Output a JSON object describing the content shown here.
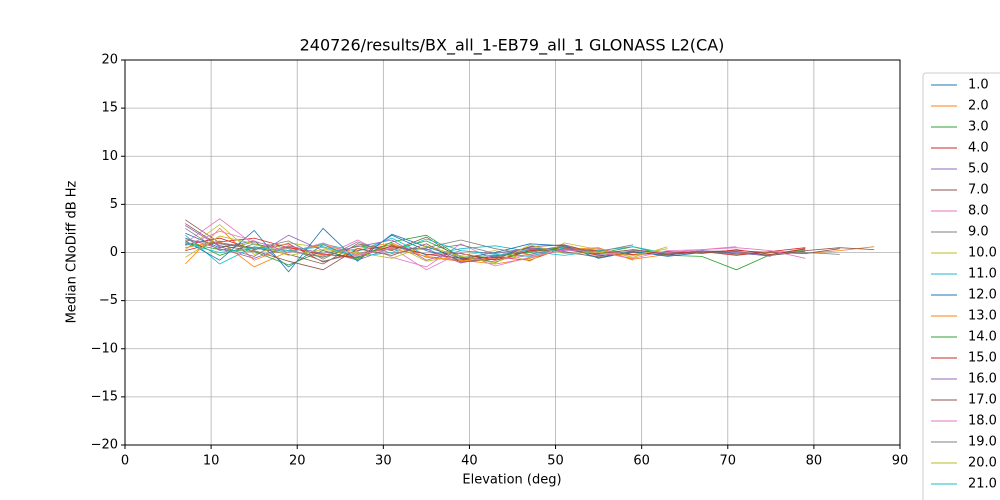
{
  "chart_data": {
    "type": "line",
    "title": "240726/results/BX_all_1-EB79_all_1 GLONASS L2(CA)",
    "xlabel": "Elevation (deg)",
    "ylabel": "Median CNoDiff dB Hz",
    "xlim": [
      0,
      90
    ],
    "ylim": [
      -20,
      20
    ],
    "xticks": [
      0,
      10,
      20,
      30,
      40,
      50,
      60,
      70,
      80,
      90
    ],
    "yticks": [
      {
        "value": -20,
        "label": "−20"
      },
      {
        "value": -15,
        "label": "−15"
      },
      {
        "value": -10,
        "label": "−10"
      },
      {
        "value": -5,
        "label": "−5"
      },
      0,
      5,
      10,
      15,
      20
    ],
    "grid": true,
    "legend": "right",
    "x": [
      7,
      11,
      15,
      19,
      23,
      27,
      31,
      35,
      39,
      43,
      47,
      51,
      55,
      59,
      63,
      67,
      71,
      75,
      79,
      83,
      87
    ],
    "series": [
      {
        "name": "1.0",
        "color": "#1f77b4",
        "values": [
          2.0,
          0.5,
          1.2,
          -1.5,
          0.8,
          -0.6,
          1.8,
          0.2,
          -0.8,
          -0.4,
          0.5,
          0.3,
          -0.2,
          0.1,
          -0.3,
          0.2,
          -0.1,
          -0.3,
          0.1,
          null,
          null
        ]
      },
      {
        "name": "2.0",
        "color": "#ff7f0e",
        "values": [
          -1.2,
          2.5,
          -0.8,
          0.6,
          -0.3,
          0.4,
          1.0,
          -0.5,
          -0.9,
          -0.6,
          -0.2,
          0.6,
          0.1,
          -0.7,
          -0.2,
          0.1,
          -0.2,
          0.0,
          -0.1,
          0.2,
          0.6
        ]
      },
      {
        "name": "3.0",
        "color": "#2ca02c",
        "values": [
          1.5,
          -0.3,
          0.9,
          0.2,
          -0.5,
          0.7,
          0.3,
          1.2,
          -0.4,
          -1.0,
          0.2,
          0.4,
          -0.1,
          0.6,
          -0.3,
          -0.4,
          -1.8,
          -0.2,
          0.3,
          null,
          null
        ]
      },
      {
        "name": "4.0",
        "color": "#d62728",
        "values": [
          0.8,
          1.5,
          0.3,
          0.9,
          -1.0,
          0.2,
          0.8,
          -0.2,
          -0.6,
          -0.5,
          -0.8,
          0.5,
          0.2,
          -0.2,
          0.0,
          0.1,
          -0.3,
          0.1,
          0.5,
          null,
          null
        ]
      },
      {
        "name": "5.0",
        "color": "#9467bd",
        "values": [
          2.8,
          0.6,
          -0.4,
          1.8,
          0.2,
          -0.8,
          0.5,
          0.4,
          -1.1,
          -0.3,
          0.1,
          0.7,
          -0.2,
          0.3,
          -0.1,
          0.2,
          0.0,
          -0.4,
          null,
          null,
          null
        ]
      },
      {
        "name": "7.0",
        "color": "#8c564b",
        "values": [
          3.4,
          1.0,
          0.5,
          -0.2,
          -1.2,
          0.9,
          0.2,
          1.6,
          -0.7,
          -0.5,
          0.3,
          0.1,
          -0.5,
          0.0,
          -0.2,
          0.1,
          0.2,
          0.0,
          -0.1,
          0.4,
          null
        ]
      },
      {
        "name": "8.0",
        "color": "#e377c2",
        "values": [
          1.0,
          3.5,
          0.8,
          0.2,
          -0.4,
          1.3,
          -0.5,
          -1.5,
          0.9,
          -0.8,
          -0.3,
          0.2,
          0.4,
          -0.3,
          0.0,
          0.3,
          0.6,
          null,
          null,
          null,
          null
        ]
      },
      {
        "name": "9.0",
        "color": "#7f7f7f",
        "values": [
          2.5,
          0.2,
          1.1,
          0.4,
          -0.9,
          -0.1,
          0.6,
          0.3,
          0.8,
          -0.1,
          0.5,
          0.0,
          -0.4,
          0.2,
          -0.1,
          0.1,
          -0.2,
          0.1,
          0.0,
          -0.2,
          null
        ]
      },
      {
        "name": "10.0",
        "color": "#bcbd22",
        "values": [
          0.3,
          2.9,
          -0.2,
          1.0,
          0.5,
          -0.6,
          0.9,
          -0.9,
          -0.3,
          0.2,
          -0.9,
          1.0,
          0.3,
          -0.5,
          0.6,
          null,
          null,
          null,
          null,
          null,
          null
        ]
      },
      {
        "name": "11.0",
        "color": "#17becf",
        "values": [
          1.8,
          -1.2,
          0.6,
          0.0,
          0.9,
          0.1,
          1.5,
          -0.3,
          0.4,
          0.7,
          0.1,
          -0.3,
          0.2,
          0.6,
          -0.1,
          null,
          null,
          null,
          null,
          null,
          null
        ]
      },
      {
        "name": "12.0",
        "color": "#1f77b4",
        "values": [
          1.2,
          -0.8,
          2.3,
          -2.0,
          2.5,
          -0.9,
          1.9,
          0.6,
          -0.6,
          0.0,
          0.9,
          0.7,
          -0.6,
          0.1,
          -0.4,
          0.0,
          null,
          null,
          null,
          null,
          null
        ]
      },
      {
        "name": "13.0",
        "color": "#ff7f0e",
        "values": [
          0.5,
          1.2,
          -1.5,
          0.1,
          0.8,
          -0.2,
          0.4,
          -0.4,
          -0.8,
          -1.2,
          -0.6,
          0.3,
          0.5,
          -0.8,
          null,
          null,
          null,
          null,
          null,
          null,
          null
        ]
      },
      {
        "name": "14.0",
        "color": "#2ca02c",
        "values": [
          1.0,
          0.3,
          0.1,
          -1.3,
          0.2,
          -0.7,
          1.1,
          1.8,
          -0.5,
          -0.3,
          0.0,
          0.6,
          null,
          null,
          null,
          null,
          null,
          null,
          null,
          null,
          null
        ]
      },
      {
        "name": "15.0",
        "color": "#d62728",
        "values": [
          0.2,
          1.1,
          1.5,
          0.5,
          -0.2,
          -0.5,
          0.7,
          -0.2,
          -0.1,
          -0.8,
          0.2,
          0.4,
          -0.3,
          -0.2,
          0.1,
          -0.1,
          0.3,
          -0.2,
          0.4,
          null,
          null
        ]
      },
      {
        "name": "16.0",
        "color": "#9467bd",
        "values": [
          1.5,
          0.4,
          -0.6,
          0.7,
          -0.1,
          0.6,
          1.3,
          -0.8,
          0.2,
          -0.1,
          0.4,
          0.2,
          null,
          null,
          null,
          null,
          null,
          null,
          null,
          null,
          null
        ]
      },
      {
        "name": "17.0",
        "color": "#8c564b",
        "values": [
          3.0,
          0.7,
          0.2,
          -0.9,
          -1.8,
          0.4,
          -0.3,
          0.9,
          -1.0,
          -0.7,
          0.6,
          0.8,
          -0.1,
          0.3,
          -0.2,
          0.0,
          0.1,
          -0.3,
          0.2,
          0.5,
          0.3
        ]
      },
      {
        "name": "18.0",
        "color": "#e377c2",
        "values": [
          0.7,
          2.2,
          1.2,
          0.0,
          1.0,
          -0.3,
          0.5,
          -1.8,
          0.0,
          -1.4,
          -0.5,
          0.3,
          0.0,
          -0.6,
          0.2,
          0.3,
          0.5,
          0.2,
          -0.6,
          null,
          null
        ]
      },
      {
        "name": "19.0",
        "color": "#7f7f7f",
        "values": [
          1.3,
          0.9,
          0.4,
          1.2,
          -0.7,
          1.1,
          -0.1,
          0.5,
          1.3,
          0.4,
          -0.2,
          0.4,
          0.1,
          0.8,
          null,
          null,
          null,
          null,
          null,
          null,
          null
        ]
      },
      {
        "name": "20.0",
        "color": "#bcbd22",
        "values": [
          -0.5,
          1.7,
          0.9,
          -0.3,
          0.3,
          0.0,
          -0.6,
          0.7,
          -0.4,
          -1.1,
          0.8,
          -0.1,
          0.0,
          -0.3,
          0.4,
          null,
          null,
          null,
          null,
          null,
          null
        ]
      },
      {
        "name": "21.0",
        "color": "#17becf",
        "values": [
          0.9,
          0.0,
          0.5,
          0.2,
          0.6,
          -0.4,
          0.0,
          1.4,
          0.2,
          -0.2,
          -0.4,
          0.5,
          null,
          null,
          null,
          null,
          null,
          null,
          null,
          null,
          null
        ]
      }
    ]
  }
}
